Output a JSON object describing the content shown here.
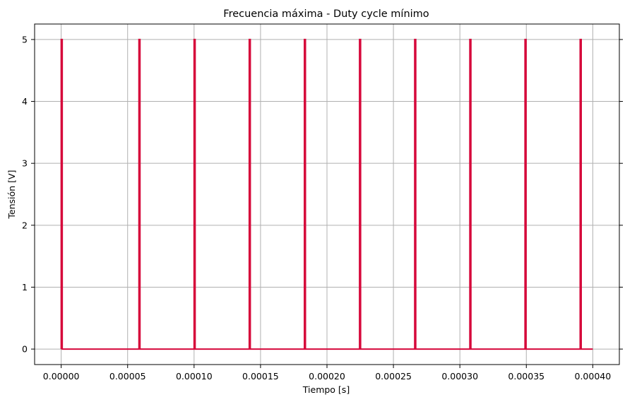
{
  "chart_data": {
    "type": "line",
    "title": "Frecuencia máxima - Duty cycle mínimo",
    "xlabel": "Tiempo [s]",
    "ylabel": "Tensión [V]",
    "xlim": [
      -2e-05,
      0.00042
    ],
    "ylim": [
      -0.25,
      5.25
    ],
    "x_ticks": [
      0.0,
      5e-05,
      0.0001,
      0.00015,
      0.0002,
      0.00025,
      0.0003,
      0.00035,
      0.0004
    ],
    "x_tick_labels": [
      "0.00000",
      "0.00005",
      "0.00010",
      "0.00015",
      "0.00020",
      "0.00025",
      "0.00030",
      "0.00035",
      "0.00040"
    ],
    "y_ticks": [
      0,
      1,
      2,
      3,
      4,
      5
    ],
    "y_tick_labels": [
      "0",
      "1",
      "2",
      "3",
      "4",
      "5"
    ],
    "grid": true,
    "series": [
      {
        "color": "#d6083b",
        "baseline": 0.0,
        "high": 5.0,
        "x_end": 0.0004,
        "pulse_starts": [
          0.0,
          5.85e-05,
          0.0001,
          0.0001415,
          0.000183,
          0.0002245,
          0.000266,
          0.0003075,
          0.000349,
          0.0003905
        ],
        "pulse_width": 8e-07
      }
    ]
  }
}
